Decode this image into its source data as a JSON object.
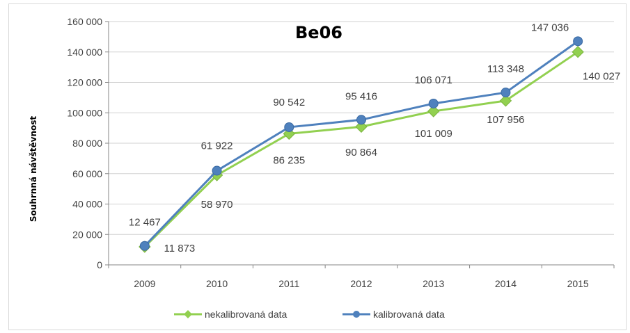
{
  "chart_data": {
    "type": "line",
    "title": "Be06",
    "xlabel": "",
    "ylabel": "Souhrnná návštěvnost",
    "categories": [
      "2009",
      "2010",
      "2011",
      "2012",
      "2013",
      "2014",
      "2015"
    ],
    "ylim": [
      0,
      160000
    ],
    "yticks": [
      0,
      20000,
      40000,
      60000,
      80000,
      100000,
      120000,
      140000,
      160000
    ],
    "ytick_labels": [
      "0",
      "20 000",
      "40 000",
      "60 000",
      "80 000",
      "100 000",
      "120 000",
      "140 000",
      "160 000"
    ],
    "grid": true,
    "legend_position": "bottom",
    "series": [
      {
        "name": "nekalibrovaná data",
        "color": "#92d050",
        "marker": "diamond",
        "values": [
          11873,
          58970,
          86235,
          90864,
          101009,
          107956,
          140027
        ],
        "labels": [
          "11 873",
          "58 970",
          "86 235",
          "90 864",
          "101 009",
          "107 956",
          "140 027"
        ]
      },
      {
        "name": "kalibrovaná data",
        "color": "#4f81bd",
        "marker": "circle",
        "values": [
          12467,
          61922,
          90542,
          95416,
          106071,
          113348,
          147036
        ],
        "labels": [
          "12 467",
          "61 922",
          "90 542",
          "95 416",
          "106 071",
          "113 348",
          "147 036"
        ]
      }
    ]
  }
}
